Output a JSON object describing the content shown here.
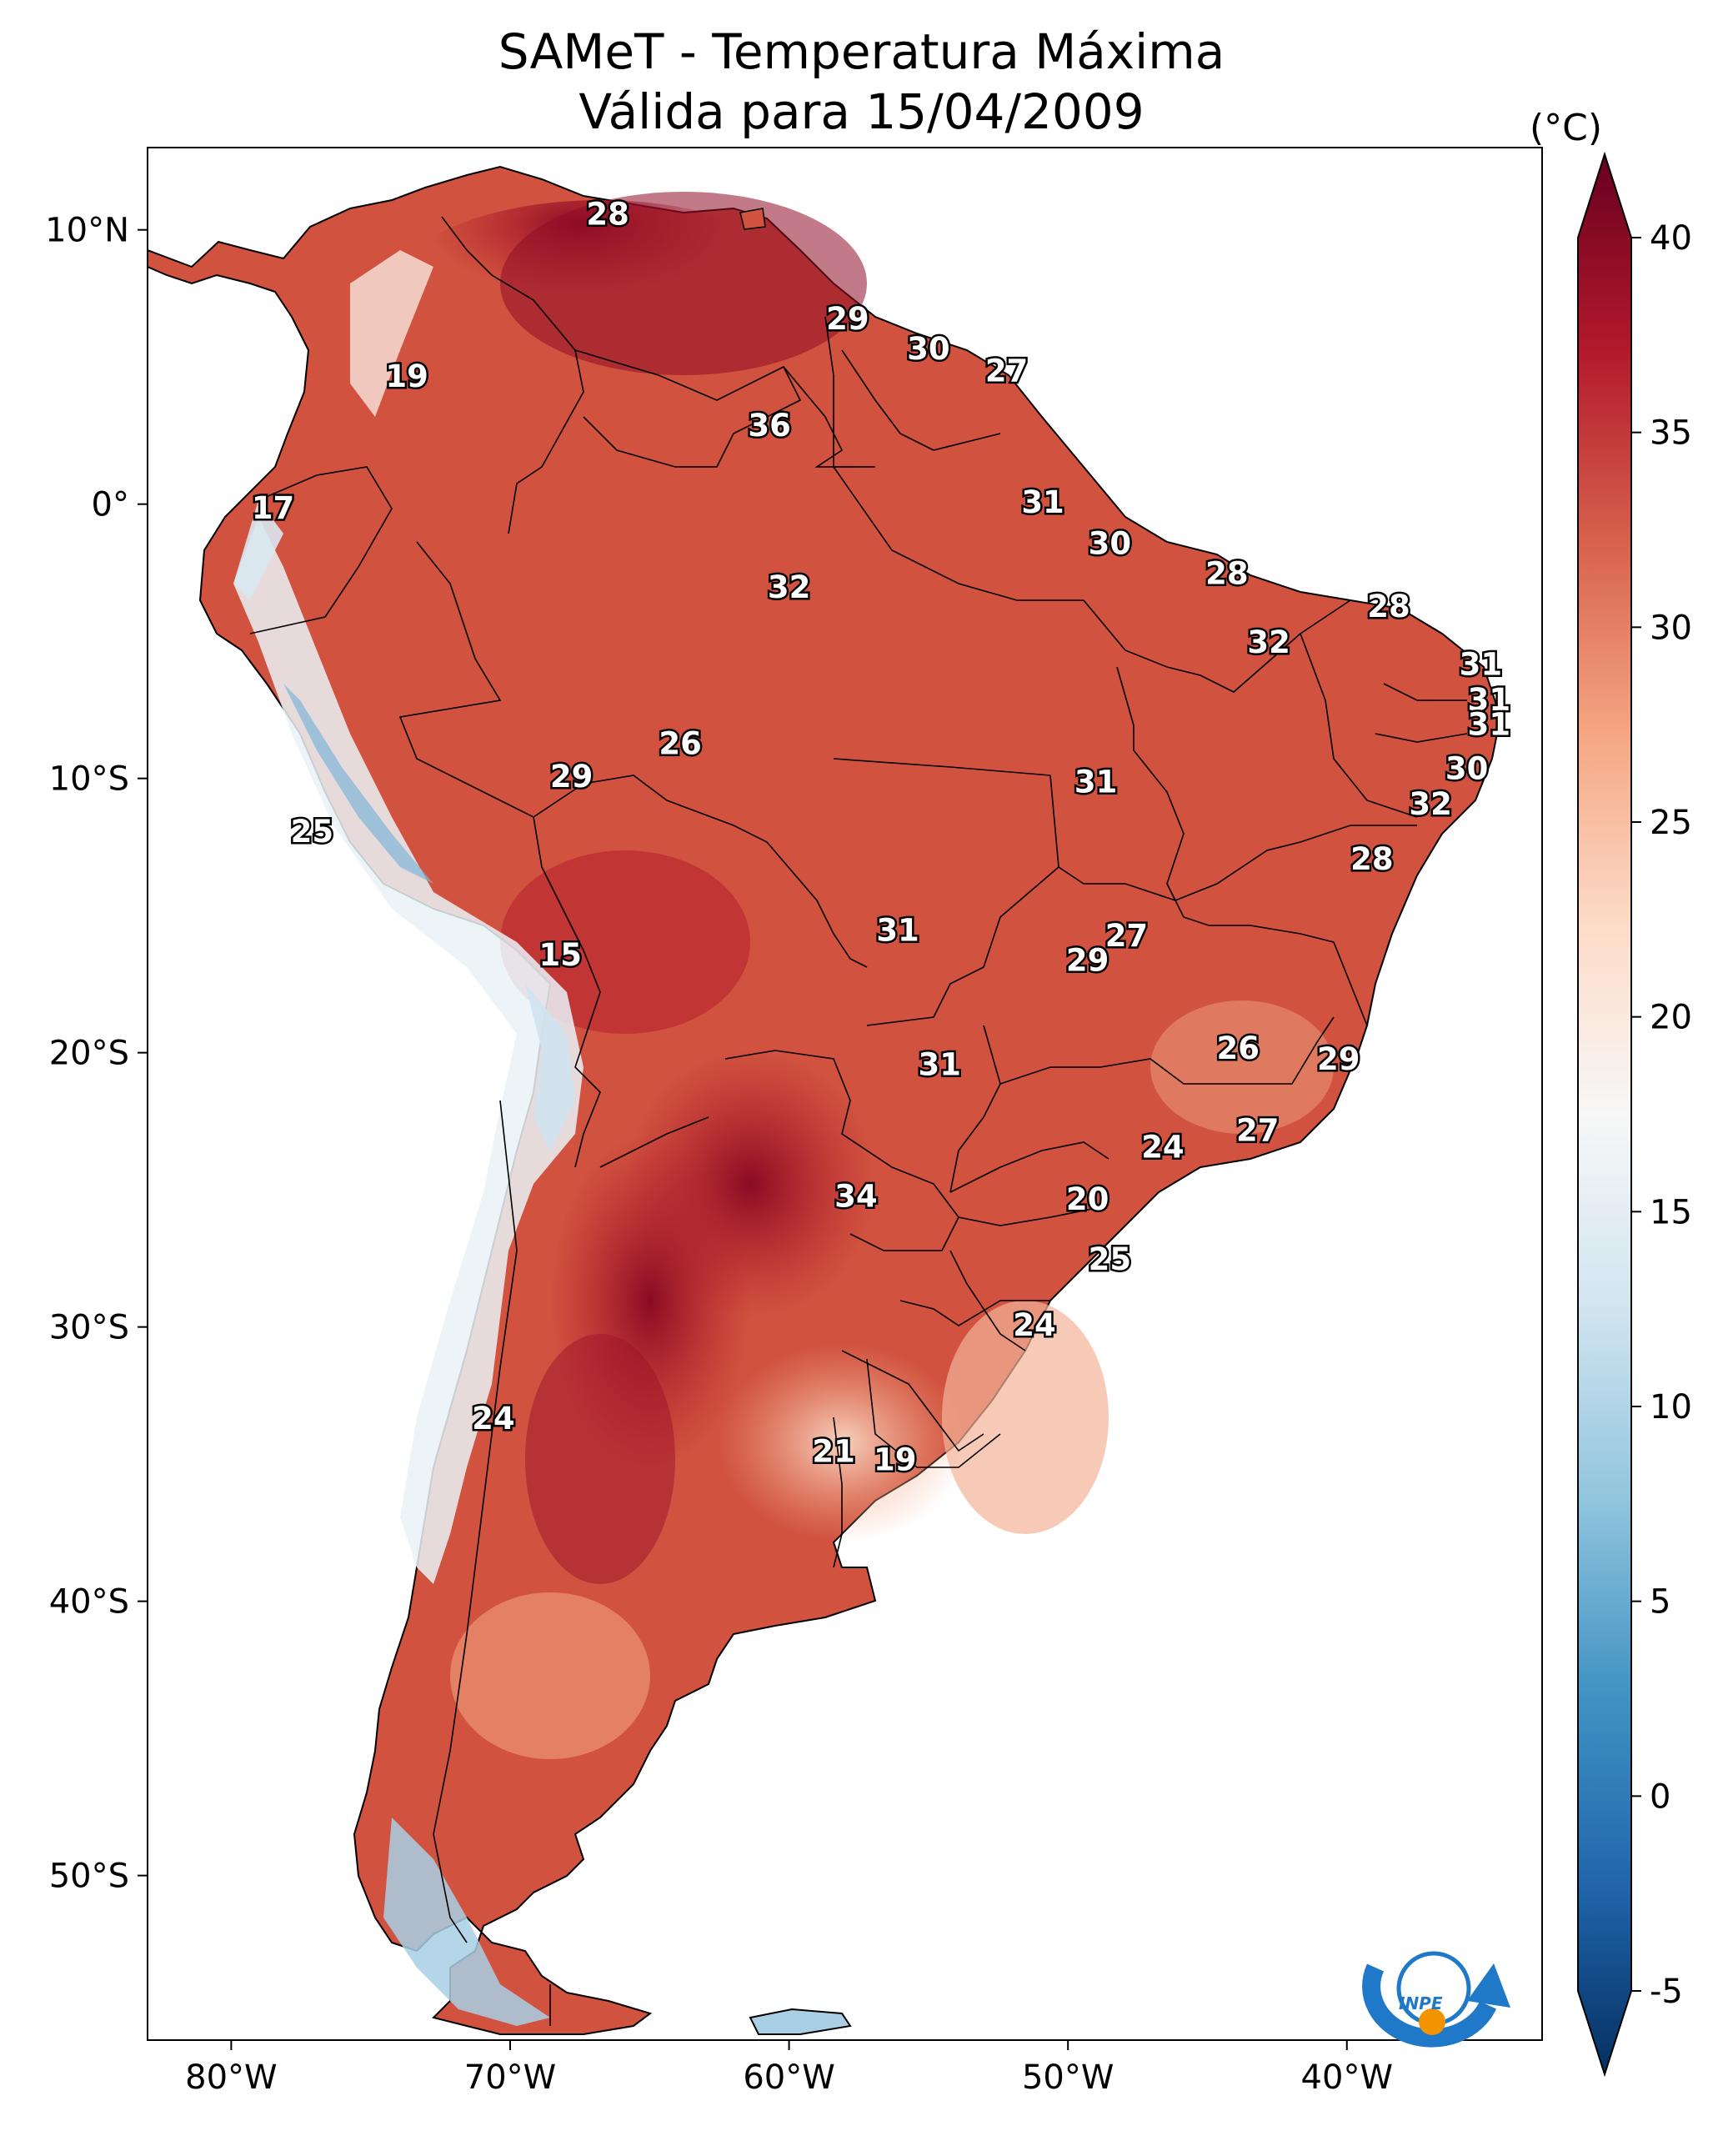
{
  "title": {
    "line1": "SAMeT - Temperatura Máxima",
    "line2": "Válida para 15/04/2009"
  },
  "map": {
    "lon_range": [
      -83,
      -33
    ],
    "lat_range": [
      -56,
      13
    ],
    "lon_ticks": [
      {
        "value": -80,
        "label": "80°W"
      },
      {
        "value": -70,
        "label": "70°W"
      },
      {
        "value": -60,
        "label": "60°W"
      },
      {
        "value": -50,
        "label": "50°W"
      },
      {
        "value": -40,
        "label": "40°W"
      }
    ],
    "lat_ticks": [
      {
        "value": 10,
        "label": "10°N"
      },
      {
        "value": 0,
        "label": "0°"
      },
      {
        "value": -10,
        "label": "10°S"
      },
      {
        "value": -20,
        "label": "20°S"
      },
      {
        "value": -30,
        "label": "30°S"
      },
      {
        "value": -40,
        "label": "40°S"
      },
      {
        "value": -50,
        "label": "50°S"
      }
    ],
    "station_values": [
      {
        "lon": -66.5,
        "lat": 10.5,
        "value": "28"
      },
      {
        "lon": -57.9,
        "lat": 6.7,
        "value": "29"
      },
      {
        "lon": -55.0,
        "lat": 5.6,
        "value": "30"
      },
      {
        "lon": -52.2,
        "lat": 4.8,
        "value": "27"
      },
      {
        "lon": -73.7,
        "lat": 4.6,
        "value": "19"
      },
      {
        "lon": -60.7,
        "lat": 2.8,
        "value": "36"
      },
      {
        "lon": -78.5,
        "lat": -0.2,
        "value": "17"
      },
      {
        "lon": -50.9,
        "lat": 0.0,
        "value": "31"
      },
      {
        "lon": -48.5,
        "lat": -1.5,
        "value": "30"
      },
      {
        "lon": -44.3,
        "lat": -2.6,
        "value": "28"
      },
      {
        "lon": -60.0,
        "lat": -3.1,
        "value": "32"
      },
      {
        "lon": -38.5,
        "lat": -3.8,
        "value": "28"
      },
      {
        "lon": -42.8,
        "lat": -5.1,
        "value": "32"
      },
      {
        "lon": -35.2,
        "lat": -5.9,
        "value": "31"
      },
      {
        "lon": -34.9,
        "lat": -7.2,
        "value": "31"
      },
      {
        "lon": -34.9,
        "lat": -8.1,
        "value": "31"
      },
      {
        "lon": -63.9,
        "lat": -8.8,
        "value": "26"
      },
      {
        "lon": -67.8,
        "lat": -10.0,
        "value": "29"
      },
      {
        "lon": -35.7,
        "lat": -9.7,
        "value": "30"
      },
      {
        "lon": -49.0,
        "lat": -10.2,
        "value": "31"
      },
      {
        "lon": -37.0,
        "lat": -11.0,
        "value": "32"
      },
      {
        "lon": -77.1,
        "lat": -12.0,
        "value": "25"
      },
      {
        "lon": -39.1,
        "lat": -13.0,
        "value": "28"
      },
      {
        "lon": -56.1,
        "lat": -15.6,
        "value": "31"
      },
      {
        "lon": -47.9,
        "lat": -15.8,
        "value": "27"
      },
      {
        "lon": -49.3,
        "lat": -16.7,
        "value": "29"
      },
      {
        "lon": -68.2,
        "lat": -16.5,
        "value": "15"
      },
      {
        "lon": -43.9,
        "lat": -19.9,
        "value": "26"
      },
      {
        "lon": -54.6,
        "lat": -20.5,
        "value": "31"
      },
      {
        "lon": -40.3,
        "lat": -20.3,
        "value": "29"
      },
      {
        "lon": -43.2,
        "lat": -22.9,
        "value": "27"
      },
      {
        "lon": -46.6,
        "lat": -23.5,
        "value": "24"
      },
      {
        "lon": -57.6,
        "lat": -25.3,
        "value": "34"
      },
      {
        "lon": -49.3,
        "lat": -25.4,
        "value": "20"
      },
      {
        "lon": -48.5,
        "lat": -27.6,
        "value": "25"
      },
      {
        "lon": -51.2,
        "lat": -30.0,
        "value": "24"
      },
      {
        "lon": -70.6,
        "lat": -33.4,
        "value": "24"
      },
      {
        "lon": -58.4,
        "lat": -34.6,
        "value": "21"
      },
      {
        "lon": -56.2,
        "lat": -34.9,
        "value": "19"
      }
    ]
  },
  "colorbar": {
    "unit": "(°C)",
    "min": -5,
    "max": 40,
    "colormap": "RdBu_r",
    "colors": [
      "#053061",
      "#2166ac",
      "#4393c3",
      "#92c5de",
      "#d1e5f0",
      "#f7f7f7",
      "#fddbc7",
      "#f4a582",
      "#d6604d",
      "#b2182b",
      "#67001f"
    ],
    "ticks": [
      {
        "value": 40,
        "label": "40"
      },
      {
        "value": 35,
        "label": "35"
      },
      {
        "value": 30,
        "label": "30"
      },
      {
        "value": 25,
        "label": "25"
      },
      {
        "value": 20,
        "label": "20"
      },
      {
        "value": 15,
        "label": "15"
      },
      {
        "value": 10,
        "label": "10"
      },
      {
        "value": 5,
        "label": "5"
      },
      {
        "value": 0,
        "label": "0"
      },
      {
        "value": -5,
        "label": "-5"
      }
    ]
  },
  "logo": {
    "text": "INPE",
    "accent_color": "#1f78c8",
    "dot_color": "#f29400"
  }
}
